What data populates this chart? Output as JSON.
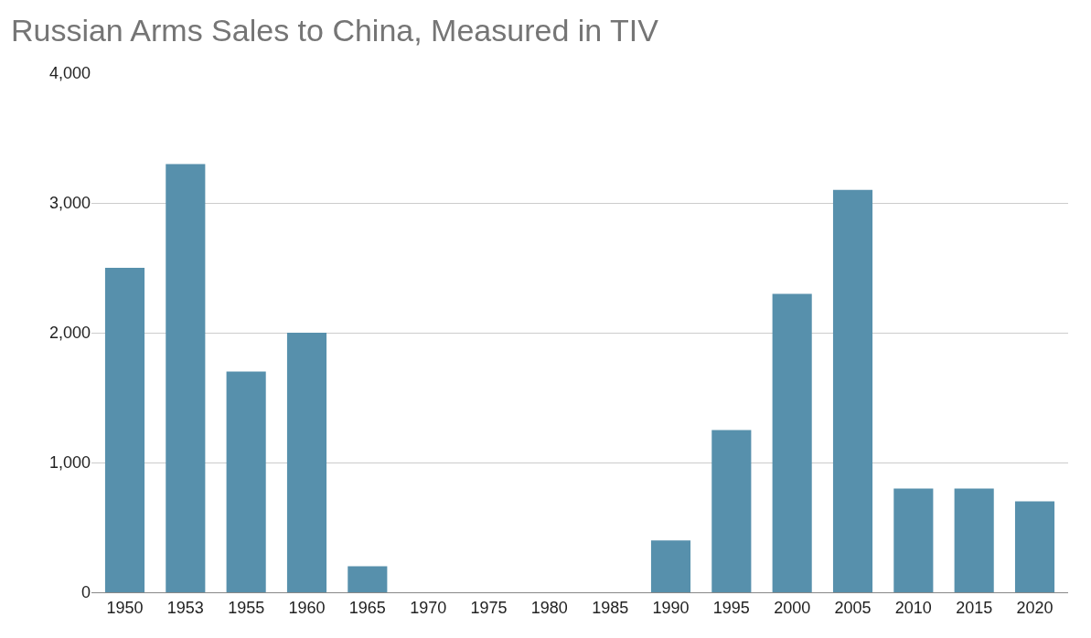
{
  "chart_data": {
    "type": "bar",
    "title": "Russian Arms Sales to China, Measured in TIV",
    "categories": [
      "1950",
      "1953",
      "1955",
      "1960",
      "1965",
      "1970",
      "1975",
      "1980",
      "1985",
      "1990",
      "1995",
      "2000",
      "2005",
      "2010",
      "2015",
      "2020"
    ],
    "values": [
      2500,
      3300,
      1700,
      2000,
      200,
      0,
      0,
      0,
      0,
      400,
      1250,
      2300,
      3100,
      800,
      800,
      700
    ],
    "color": "#5790ac",
    "ylim": [
      0,
      4000
    ],
    "yticks": [
      0,
      {
        "value": 1000,
        "label": "1,000"
      },
      {
        "value": 2000,
        "label": "2,000"
      },
      {
        "value": 3000,
        "label": "3,000"
      },
      {
        "value": 4000,
        "label": "4,000"
      }
    ],
    "grid": "y",
    "legend": false
  }
}
